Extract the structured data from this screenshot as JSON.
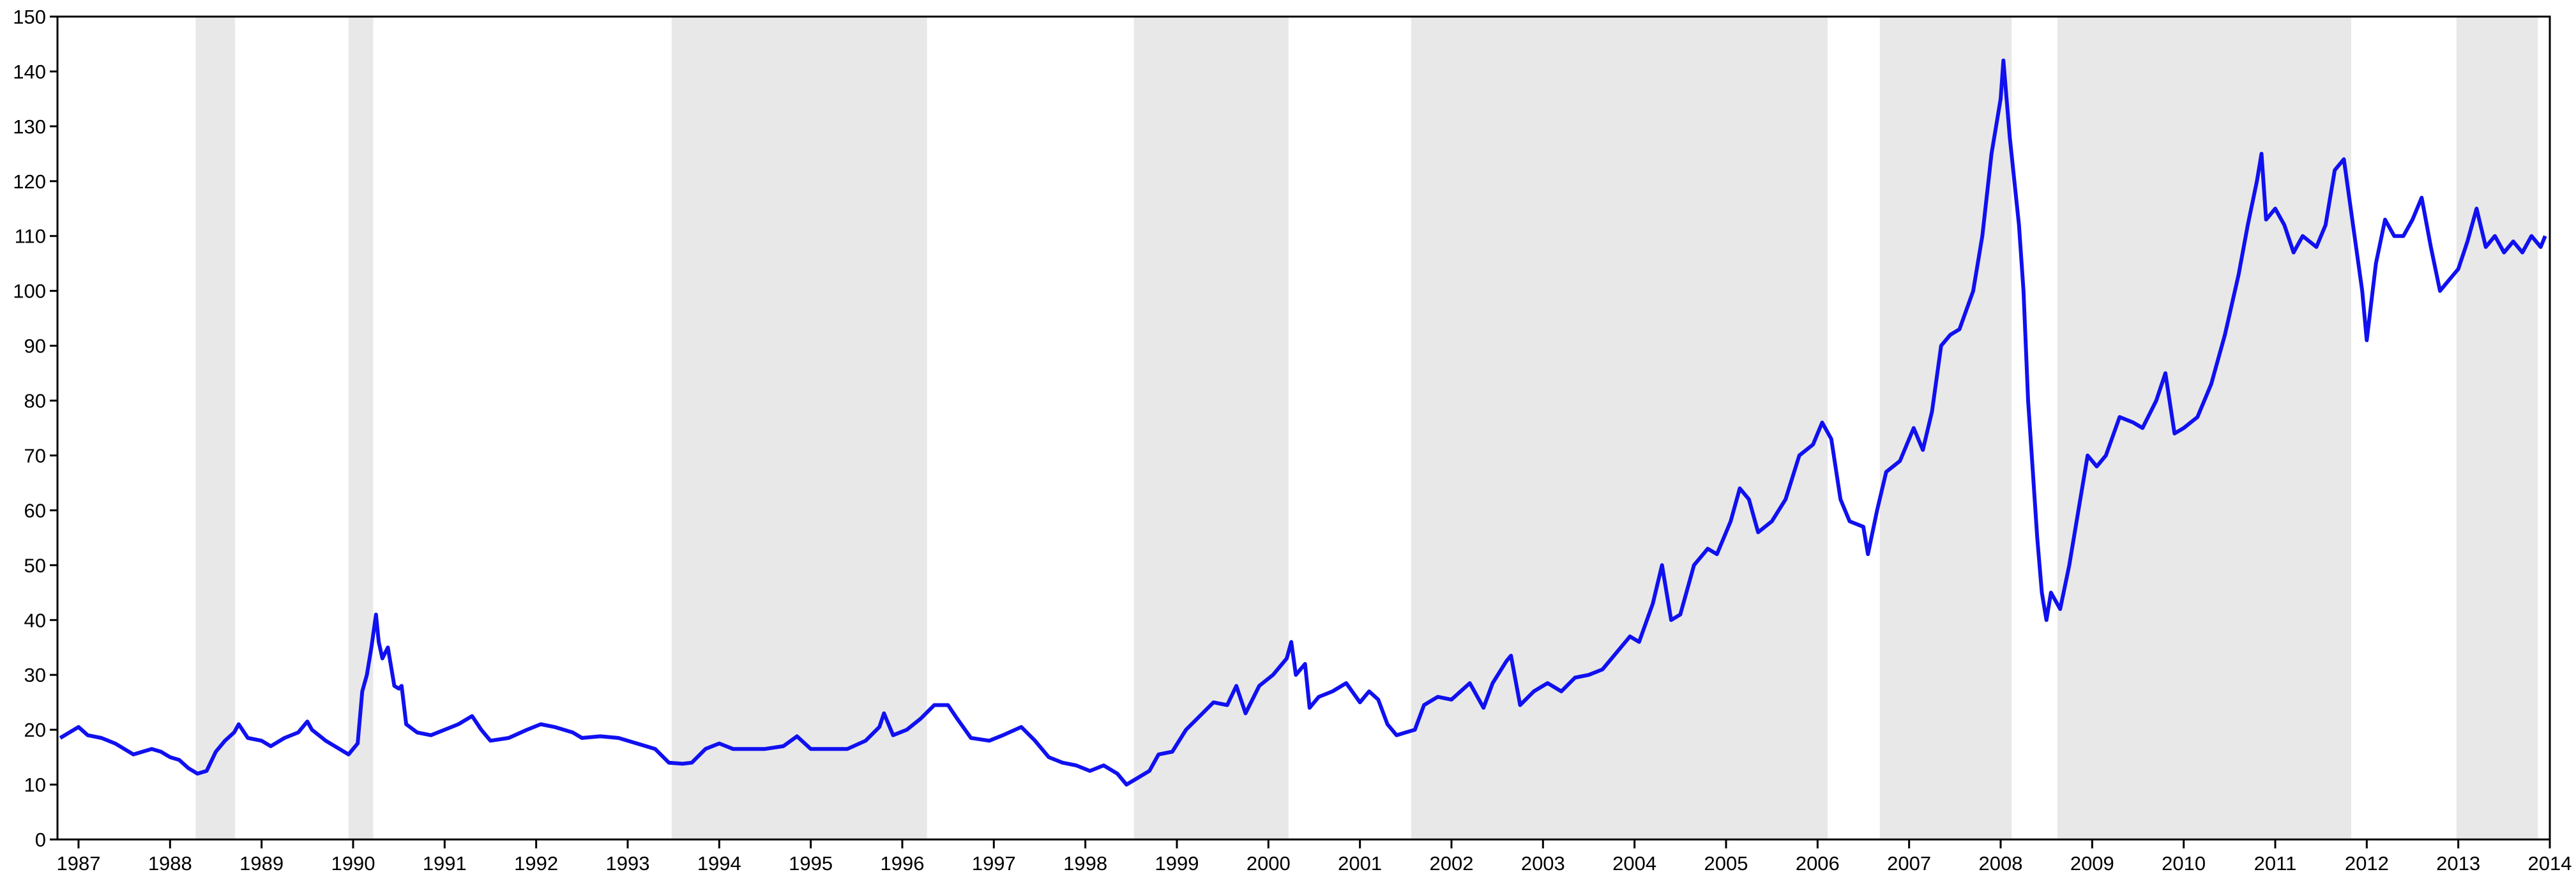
{
  "chart_data": {
    "type": "line",
    "xlim": [
      1987.27,
      2014.5
    ],
    "xticks": [
      {
        "value": 1987.5,
        "label": "1987"
      },
      {
        "value": 1988.5,
        "label": "1988"
      },
      {
        "value": 1989.5,
        "label": "1989"
      },
      {
        "value": 1990.5,
        "label": "1990"
      },
      {
        "value": 1991.5,
        "label": "1991"
      },
      {
        "value": 1992.5,
        "label": "1992"
      },
      {
        "value": 1993.5,
        "label": "1993"
      },
      {
        "value": 1994.5,
        "label": "1994"
      },
      {
        "value": 1995.5,
        "label": "1995"
      },
      {
        "value": 1996.5,
        "label": "1996"
      },
      {
        "value": 1997.5,
        "label": "1997"
      },
      {
        "value": 1998.5,
        "label": "1998"
      },
      {
        "value": 1999.5,
        "label": "1999"
      },
      {
        "value": 2000.5,
        "label": "2000"
      },
      {
        "value": 2001.5,
        "label": "2001"
      },
      {
        "value": 2002.5,
        "label": "2002"
      },
      {
        "value": 2003.5,
        "label": "2003"
      },
      {
        "value": 2004.5,
        "label": "2004"
      },
      {
        "value": 2005.5,
        "label": "2005"
      },
      {
        "value": 2006.5,
        "label": "2006"
      },
      {
        "value": 2007.5,
        "label": "2007"
      },
      {
        "value": 2008.5,
        "label": "2008"
      },
      {
        "value": 2009.5,
        "label": "2009"
      },
      {
        "value": 2010.5,
        "label": "2010"
      },
      {
        "value": 2011.5,
        "label": "2011"
      },
      {
        "value": 2012.5,
        "label": "2012"
      },
      {
        "value": 2013.5,
        "label": "2013"
      },
      {
        "value": 2014.5,
        "label": "2014"
      }
    ],
    "ylim": [
      0,
      150
    ],
    "yticks": [
      0,
      10,
      20,
      30,
      40,
      50,
      60,
      70,
      80,
      90,
      100,
      110,
      120,
      130,
      140,
      150
    ],
    "shaded_regions": [
      [
        1988.78,
        1989.21
      ],
      [
        1990.45,
        1990.72
      ],
      [
        1993.98,
        1996.77
      ],
      [
        1999.03,
        2000.72
      ],
      [
        2002.06,
        2006.61
      ],
      [
        2007.18,
        2008.62
      ],
      [
        2009.12,
        2012.33
      ],
      [
        2013.48,
        2014.37
      ]
    ],
    "shade_color": "#e8e8e8",
    "series": [
      {
        "color": "#1010f0",
        "x": [
          1987.3,
          1987.4,
          1987.5,
          1987.6,
          1987.75,
          1987.9,
          1988.0,
          1988.1,
          1988.2,
          1988.3,
          1988.4,
          1988.5,
          1988.6,
          1988.7,
          1988.8,
          1988.9,
          1989.0,
          1989.1,
          1989.2,
          1989.25,
          1989.35,
          1989.5,
          1989.6,
          1989.75,
          1989.9,
          1990.0,
          1990.05,
          1990.2,
          1990.35,
          1990.45,
          1990.55,
          1990.6,
          1990.65,
          1990.7,
          1990.75,
          1990.78,
          1990.82,
          1990.88,
          1990.95,
          1991.0,
          1991.03,
          1991.08,
          1991.2,
          1991.35,
          1991.5,
          1991.65,
          1991.8,
          1991.9,
          1992.0,
          1992.2,
          1992.4,
          1992.55,
          1992.7,
          1992.9,
          1993.0,
          1993.2,
          1993.4,
          1993.6,
          1993.8,
          1993.95,
          1994.1,
          1994.2,
          1994.35,
          1994.5,
          1994.65,
          1994.8,
          1995.0,
          1995.2,
          1995.35,
          1995.5,
          1995.7,
          1995.9,
          1996.1,
          1996.25,
          1996.3,
          1996.4,
          1996.55,
          1996.7,
          1996.85,
          1997.0,
          1997.1,
          1997.25,
          1997.45,
          1997.6,
          1997.8,
          1997.95,
          1998.1,
          1998.25,
          1998.4,
          1998.55,
          1998.7,
          1998.85,
          1998.95,
          1999.05,
          1999.2,
          1999.3,
          1999.45,
          1999.6,
          1999.75,
          1999.9,
          2000.05,
          2000.15,
          2000.25,
          2000.4,
          2000.55,
          2000.7,
          2000.75,
          2000.8,
          2000.9,
          2000.95,
          2001.05,
          2001.2,
          2001.35,
          2001.5,
          2001.6,
          2001.7,
          2001.8,
          2001.9,
          2002.0,
          2002.1,
          2002.2,
          2002.35,
          2002.5,
          2002.6,
          2002.7,
          2002.85,
          2002.95,
          2003.1,
          2003.15,
          2003.25,
          2003.4,
          2003.55,
          2003.7,
          2003.85,
          2004.0,
          2004.15,
          2004.3,
          2004.45,
          2004.55,
          2004.7,
          2004.8,
          2004.9,
          2005.0,
          2005.15,
          2005.3,
          2005.4,
          2005.55,
          2005.65,
          2005.75,
          2005.85,
          2006.0,
          2006.15,
          2006.3,
          2006.45,
          2006.55,
          2006.65,
          2006.75,
          2006.85,
          2007.0,
          2007.05,
          2007.15,
          2007.25,
          2007.4,
          2007.55,
          2007.65,
          2007.75,
          2007.85,
          2007.95,
          2008.05,
          2008.2,
          2008.3,
          2008.4,
          2008.5,
          2008.53,
          2008.6,
          2008.7,
          2008.75,
          2008.8,
          2008.9,
          2008.95,
          2009.0,
          2009.05,
          2009.15,
          2009.25,
          2009.35,
          2009.45,
          2009.55,
          2009.65,
          2009.8,
          2009.95,
          2010.05,
          2010.2,
          2010.3,
          2010.4,
          2010.5,
          2010.65,
          2010.8,
          2010.95,
          2011.1,
          2011.2,
          2011.3,
          2011.35,
          2011.4,
          2011.5,
          2011.6,
          2011.7,
          2011.8,
          2011.95,
          2012.05,
          2012.15,
          2012.25,
          2012.35,
          2012.45,
          2012.5,
          2012.6,
          2012.7,
          2012.8,
          2012.9,
          2013.0,
          2013.1,
          2013.2,
          2013.3,
          2013.4,
          2013.5,
          2013.6,
          2013.7,
          2013.8,
          2013.9,
          2014.0,
          2014.1,
          2014.2,
          2014.3,
          2014.4,
          2014.45
        ],
        "values": [
          18.5,
          19.5,
          20.5,
          19,
          18.5,
          17.5,
          16.5,
          15.5,
          16,
          16.5,
          16,
          15,
          14.5,
          13,
          12,
          12.5,
          16,
          18,
          19.5,
          21,
          18.5,
          18,
          17,
          18.5,
          19.5,
          21.5,
          20,
          18,
          16.5,
          15.5,
          17.5,
          27,
          30,
          35,
          41,
          36,
          33,
          35,
          28,
          27.5,
          28,
          21,
          19.5,
          19,
          20,
          21,
          22.5,
          20,
          18,
          18.5,
          20,
          21,
          20.5,
          19.5,
          18.5,
          18.8,
          18.5,
          17.5,
          16.5,
          14,
          13.8,
          14,
          16.5,
          17.5,
          16.5,
          16.5,
          16.5,
          17,
          18.8,
          16.5,
          16.5,
          16.5,
          18,
          20.5,
          23,
          19,
          20,
          22,
          24.5,
          24.5,
          22,
          18.5,
          18,
          19,
          20.5,
          18,
          15,
          14,
          13.5,
          12.5,
          13.5,
          12,
          10,
          11,
          12.5,
          15.5,
          16,
          20,
          22.5,
          25,
          24.5,
          28,
          23,
          28,
          30,
          33,
          36,
          30,
          32,
          24,
          26,
          27,
          28.5,
          25,
          27,
          25.5,
          21,
          19,
          19.5,
          20,
          24.5,
          26,
          25.5,
          27,
          28.5,
          24,
          28.5,
          32.5,
          33.5,
          24.5,
          27,
          28.5,
          27,
          29.5,
          30,
          31,
          34,
          37,
          36,
          43,
          50,
          40,
          41,
          50,
          53,
          52,
          58,
          64,
          62,
          56,
          58,
          62,
          70,
          72,
          76,
          73,
          62,
          58,
          57,
          52,
          60,
          67,
          69,
          75,
          71,
          78,
          90,
          92,
          93,
          100,
          110,
          125,
          135,
          142,
          128,
          112,
          100,
          80,
          55,
          45,
          40,
          45,
          42,
          50,
          60,
          70,
          68,
          70,
          77,
          76,
          75,
          80,
          85,
          74,
          75,
          77,
          83,
          92,
          103,
          112,
          120,
          125,
          113,
          115,
          112,
          107,
          110,
          108,
          112,
          122,
          124,
          112,
          100,
          91,
          105,
          113,
          110,
          110,
          113,
          117,
          108,
          100,
          102,
          104,
          109,
          115,
          108,
          110,
          107,
          109,
          107,
          110,
          108,
          110
        ]
      }
    ]
  }
}
